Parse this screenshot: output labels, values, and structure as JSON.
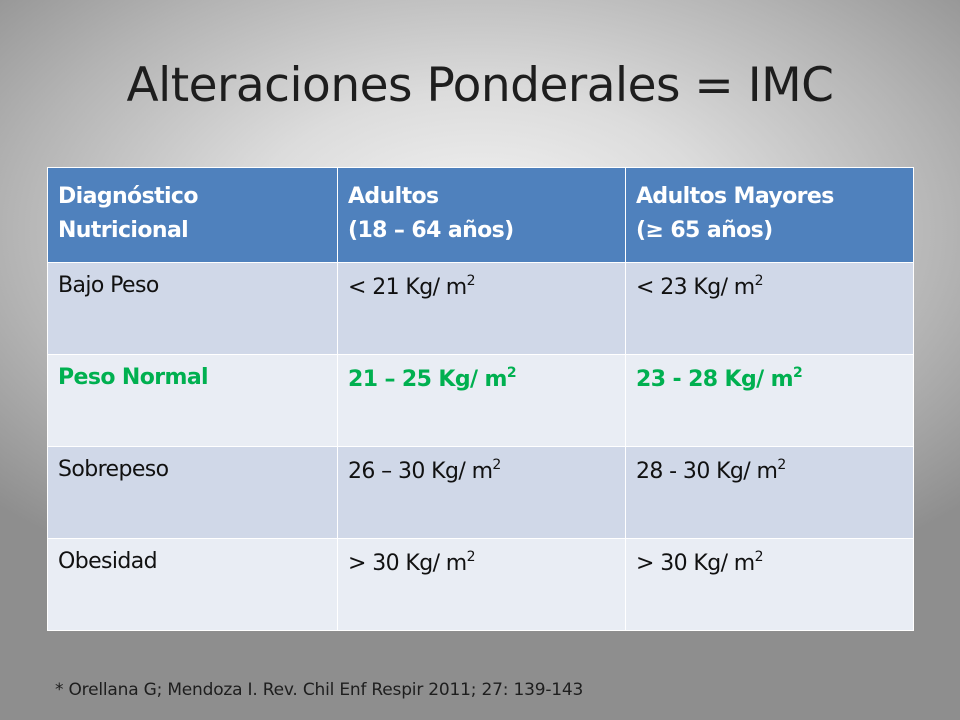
{
  "title": "Alteraciones Ponderales = IMC",
  "table": {
    "headers": [
      {
        "line1": "Diagnóstico",
        "line2": "Nutricional"
      },
      {
        "line1": "Adultos",
        "line2": "(18 – 64 años)"
      },
      {
        "line1": "Adultos Mayores",
        "line2": "(≥ 65 años)"
      }
    ],
    "unit_exponent": "2",
    "rows": [
      {
        "label": "Bajo Peso",
        "adultos": "< 21 Kg/ m",
        "mayores": "< 23 Kg/ m"
      },
      {
        "label": "Peso Normal",
        "adultos": "21 – 25 Kg/ m",
        "mayores": "23 - 28 Kg/ m"
      },
      {
        "label": "Sobrepeso",
        "adultos": "26 – 30 Kg/ m",
        "mayores": "28 - 30 Kg/ m"
      },
      {
        "label": "Obesidad",
        "adultos": "> 30 Kg/ m",
        "mayores": "> 30 Kg/ m"
      }
    ],
    "highlight_color": "#00b050",
    "header_color": "#4f81bd"
  },
  "reference": "* Orellana G; Mendoza I. Rev. Chil Enf Respir 2011; 27: 139-143"
}
